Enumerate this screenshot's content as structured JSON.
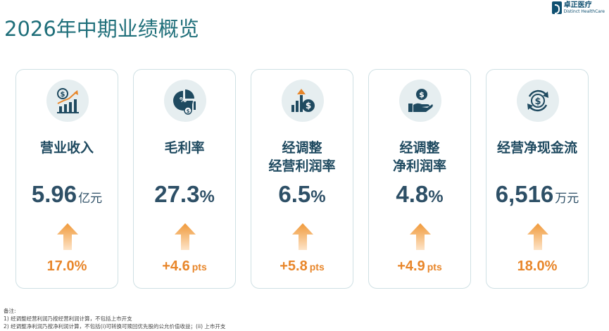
{
  "title": "2026年中期业绩概览",
  "logo": {
    "cn": "卓正医疗",
    "en": "Distinct HealthCare"
  },
  "cards": [
    {
      "icon": "chart-growth-icon",
      "label_lines": [
        "营业收入"
      ],
      "value": "5.96",
      "unit": "亿元",
      "growth": "17.0%",
      "growth_unit": ""
    },
    {
      "icon": "pie-percent-icon",
      "label_lines": [
        "毛利率"
      ],
      "value": "27.3",
      "unit": "%",
      "growth": "+4.6",
      "growth_unit": "pts"
    },
    {
      "icon": "bars-dollar-icon",
      "label_lines": [
        "经调整",
        "经营利润率"
      ],
      "value": "6.5",
      "unit": "%",
      "growth": "+5.8",
      "growth_unit": "pts"
    },
    {
      "icon": "hand-coin-icon",
      "label_lines": [
        "经调整",
        "净利润率"
      ],
      "value": "4.8",
      "unit": "%",
      "growth": "+4.9",
      "growth_unit": "pts"
    },
    {
      "icon": "cycle-dollar-icon",
      "label_lines": [
        "经营净现金流"
      ],
      "value": "6,516",
      "unit": "万元",
      "growth": "18.0%",
      "growth_unit": ""
    }
  ],
  "notes": {
    "heading": "备注:",
    "line1": "1) 经调整经营利润乃按经营利润计算，不包括上市开支",
    "line2": "2) 经调整净利润乃按净利润计算，不包括(i)可转换可赎回优先股的公允价值收益；(ii) 上市开支"
  },
  "colors": {
    "title": "#1f6f7a",
    "label": "#1f4a60",
    "growth": "#e8862a",
    "card_border": "#cfe0e4"
  }
}
